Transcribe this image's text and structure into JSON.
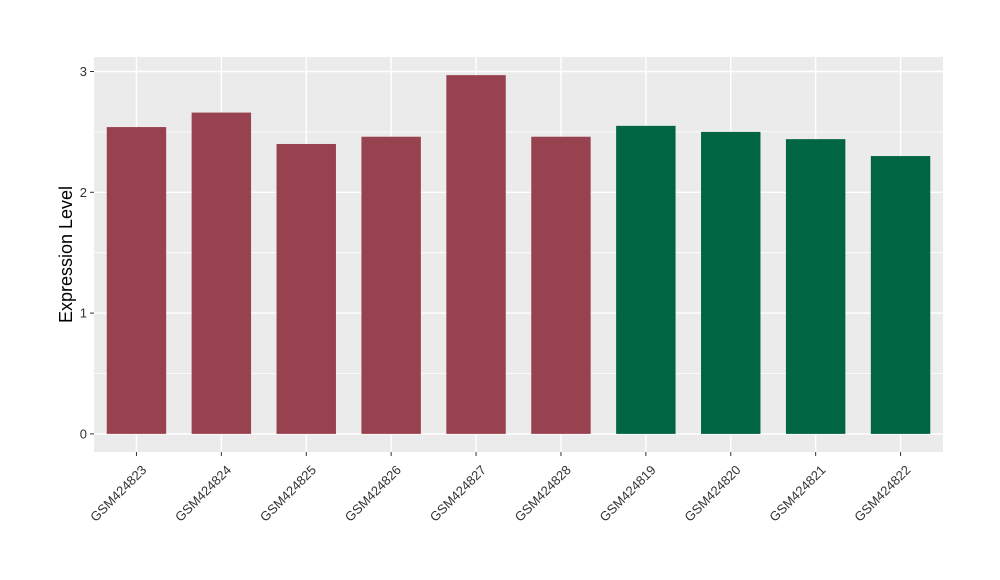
{
  "chart_data": {
    "type": "bar",
    "categories": [
      "GSM424823",
      "GSM424824",
      "GSM424825",
      "GSM424826",
      "GSM424827",
      "GSM424828",
      "GSM424819",
      "GSM424820",
      "GSM424821",
      "GSM424822"
    ],
    "values": [
      2.54,
      2.66,
      2.4,
      2.46,
      2.97,
      2.46,
      2.55,
      2.5,
      2.44,
      2.3
    ],
    "bar_colors": [
      "#99424F",
      "#99424F",
      "#99424F",
      "#99424F",
      "#99424F",
      "#99424F",
      "#006543",
      "#006543",
      "#006543",
      "#006543"
    ],
    "ylabel": "Expression Level",
    "xlabel": "",
    "yticks": [
      0,
      1,
      2,
      3
    ],
    "ylim": [
      -0.15,
      3.12
    ],
    "grid": true,
    "panel_background": "#EBEBEB",
    "gridline_color": "#FFFFFF"
  }
}
